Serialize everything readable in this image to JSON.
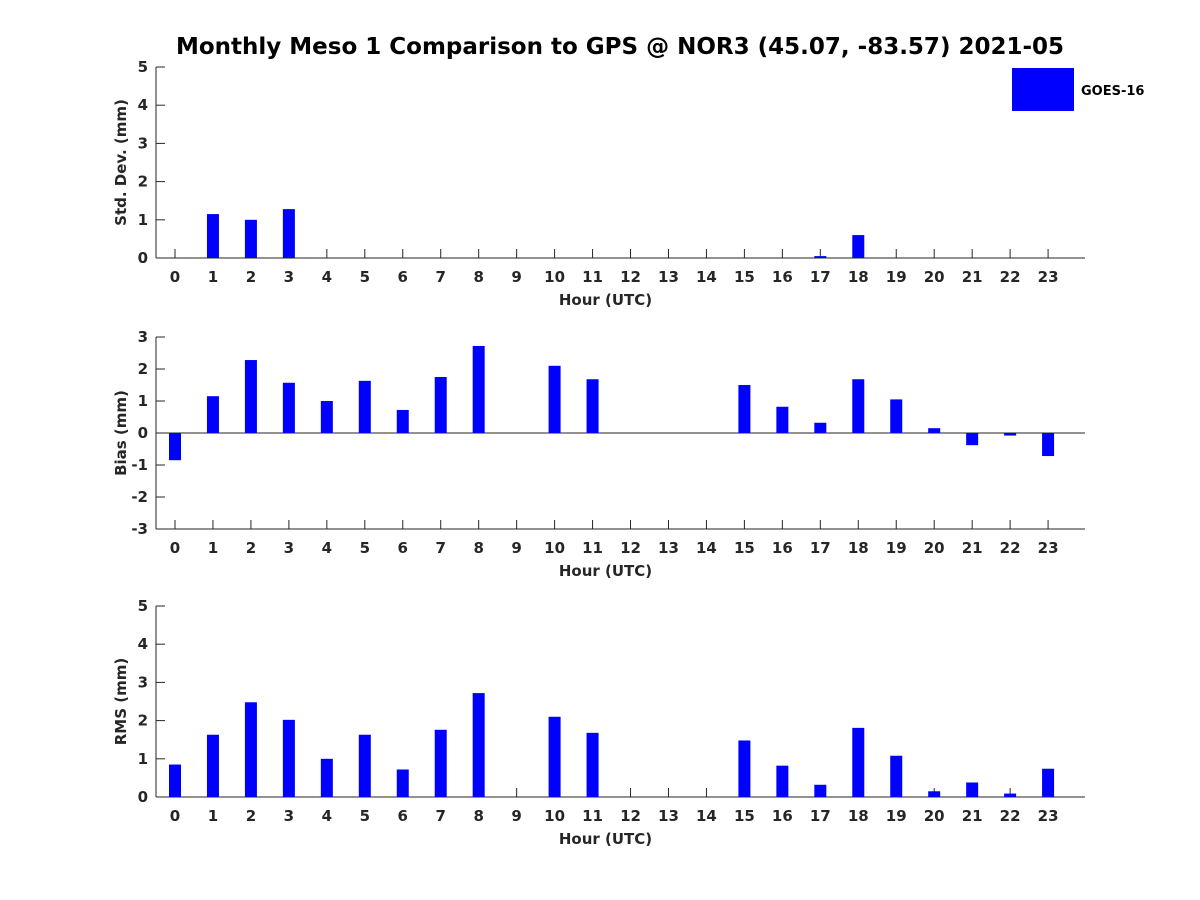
{
  "title": "Monthly Meso 1 Comparison to GPS @ NOR3 (45.07, -83.57) 2021-05",
  "legend": {
    "label": "GOES-16",
    "color": "#0000ff",
    "position": "top-right"
  },
  "chart_data": [
    {
      "type": "bar",
      "ylabel": "Std. Dev. (mm)",
      "xlabel": "Hour (UTC)",
      "ylim": [
        0,
        5
      ],
      "yticks": [
        0,
        1,
        2,
        3,
        4,
        5
      ],
      "categories": [
        "0",
        "1",
        "2",
        "3",
        "4",
        "5",
        "6",
        "7",
        "8",
        "9",
        "10",
        "11",
        "12",
        "13",
        "14",
        "15",
        "16",
        "17",
        "18",
        "19",
        "20",
        "21",
        "22",
        "23"
      ],
      "series": [
        {
          "name": "GOES-16",
          "values": [
            0,
            1.15,
            1.0,
            1.28,
            0,
            0,
            0,
            0,
            0,
            0,
            0,
            0,
            0,
            0,
            0,
            0,
            0,
            0.05,
            0.6,
            0,
            0,
            0,
            0,
            0
          ]
        }
      ]
    },
    {
      "type": "bar",
      "ylabel": "Bias (mm)",
      "xlabel": "Hour (UTC)",
      "ylim": [
        -3,
        3
      ],
      "yticks": [
        -3,
        -2,
        -1,
        0,
        1,
        2,
        3
      ],
      "categories": [
        "0",
        "1",
        "2",
        "3",
        "4",
        "5",
        "6",
        "7",
        "8",
        "9",
        "10",
        "11",
        "12",
        "13",
        "14",
        "15",
        "16",
        "17",
        "18",
        "19",
        "20",
        "21",
        "22",
        "23"
      ],
      "series": [
        {
          "name": "GOES-16",
          "values": [
            -0.85,
            1.15,
            2.28,
            1.57,
            1.0,
            1.63,
            0.72,
            1.75,
            2.72,
            0,
            2.1,
            1.68,
            0,
            0,
            0,
            1.5,
            0.82,
            0.32,
            1.68,
            1.05,
            0.15,
            -0.38,
            -0.08,
            -0.72
          ]
        }
      ]
    },
    {
      "type": "bar",
      "ylabel": "RMS (mm)",
      "xlabel": "Hour (UTC)",
      "ylim": [
        0,
        5
      ],
      "yticks": [
        0,
        1,
        2,
        3,
        4,
        5
      ],
      "categories": [
        "0",
        "1",
        "2",
        "3",
        "4",
        "5",
        "6",
        "7",
        "8",
        "9",
        "10",
        "11",
        "12",
        "13",
        "14",
        "15",
        "16",
        "17",
        "18",
        "19",
        "20",
        "21",
        "22",
        "23"
      ],
      "series": [
        {
          "name": "GOES-16",
          "values": [
            0.85,
            1.63,
            2.48,
            2.02,
            1.0,
            1.63,
            0.72,
            1.76,
            2.72,
            0,
            2.1,
            1.68,
            0,
            0,
            0,
            1.48,
            0.82,
            0.32,
            1.81,
            1.08,
            0.15,
            0.38,
            0.09,
            0.74
          ]
        }
      ]
    }
  ]
}
